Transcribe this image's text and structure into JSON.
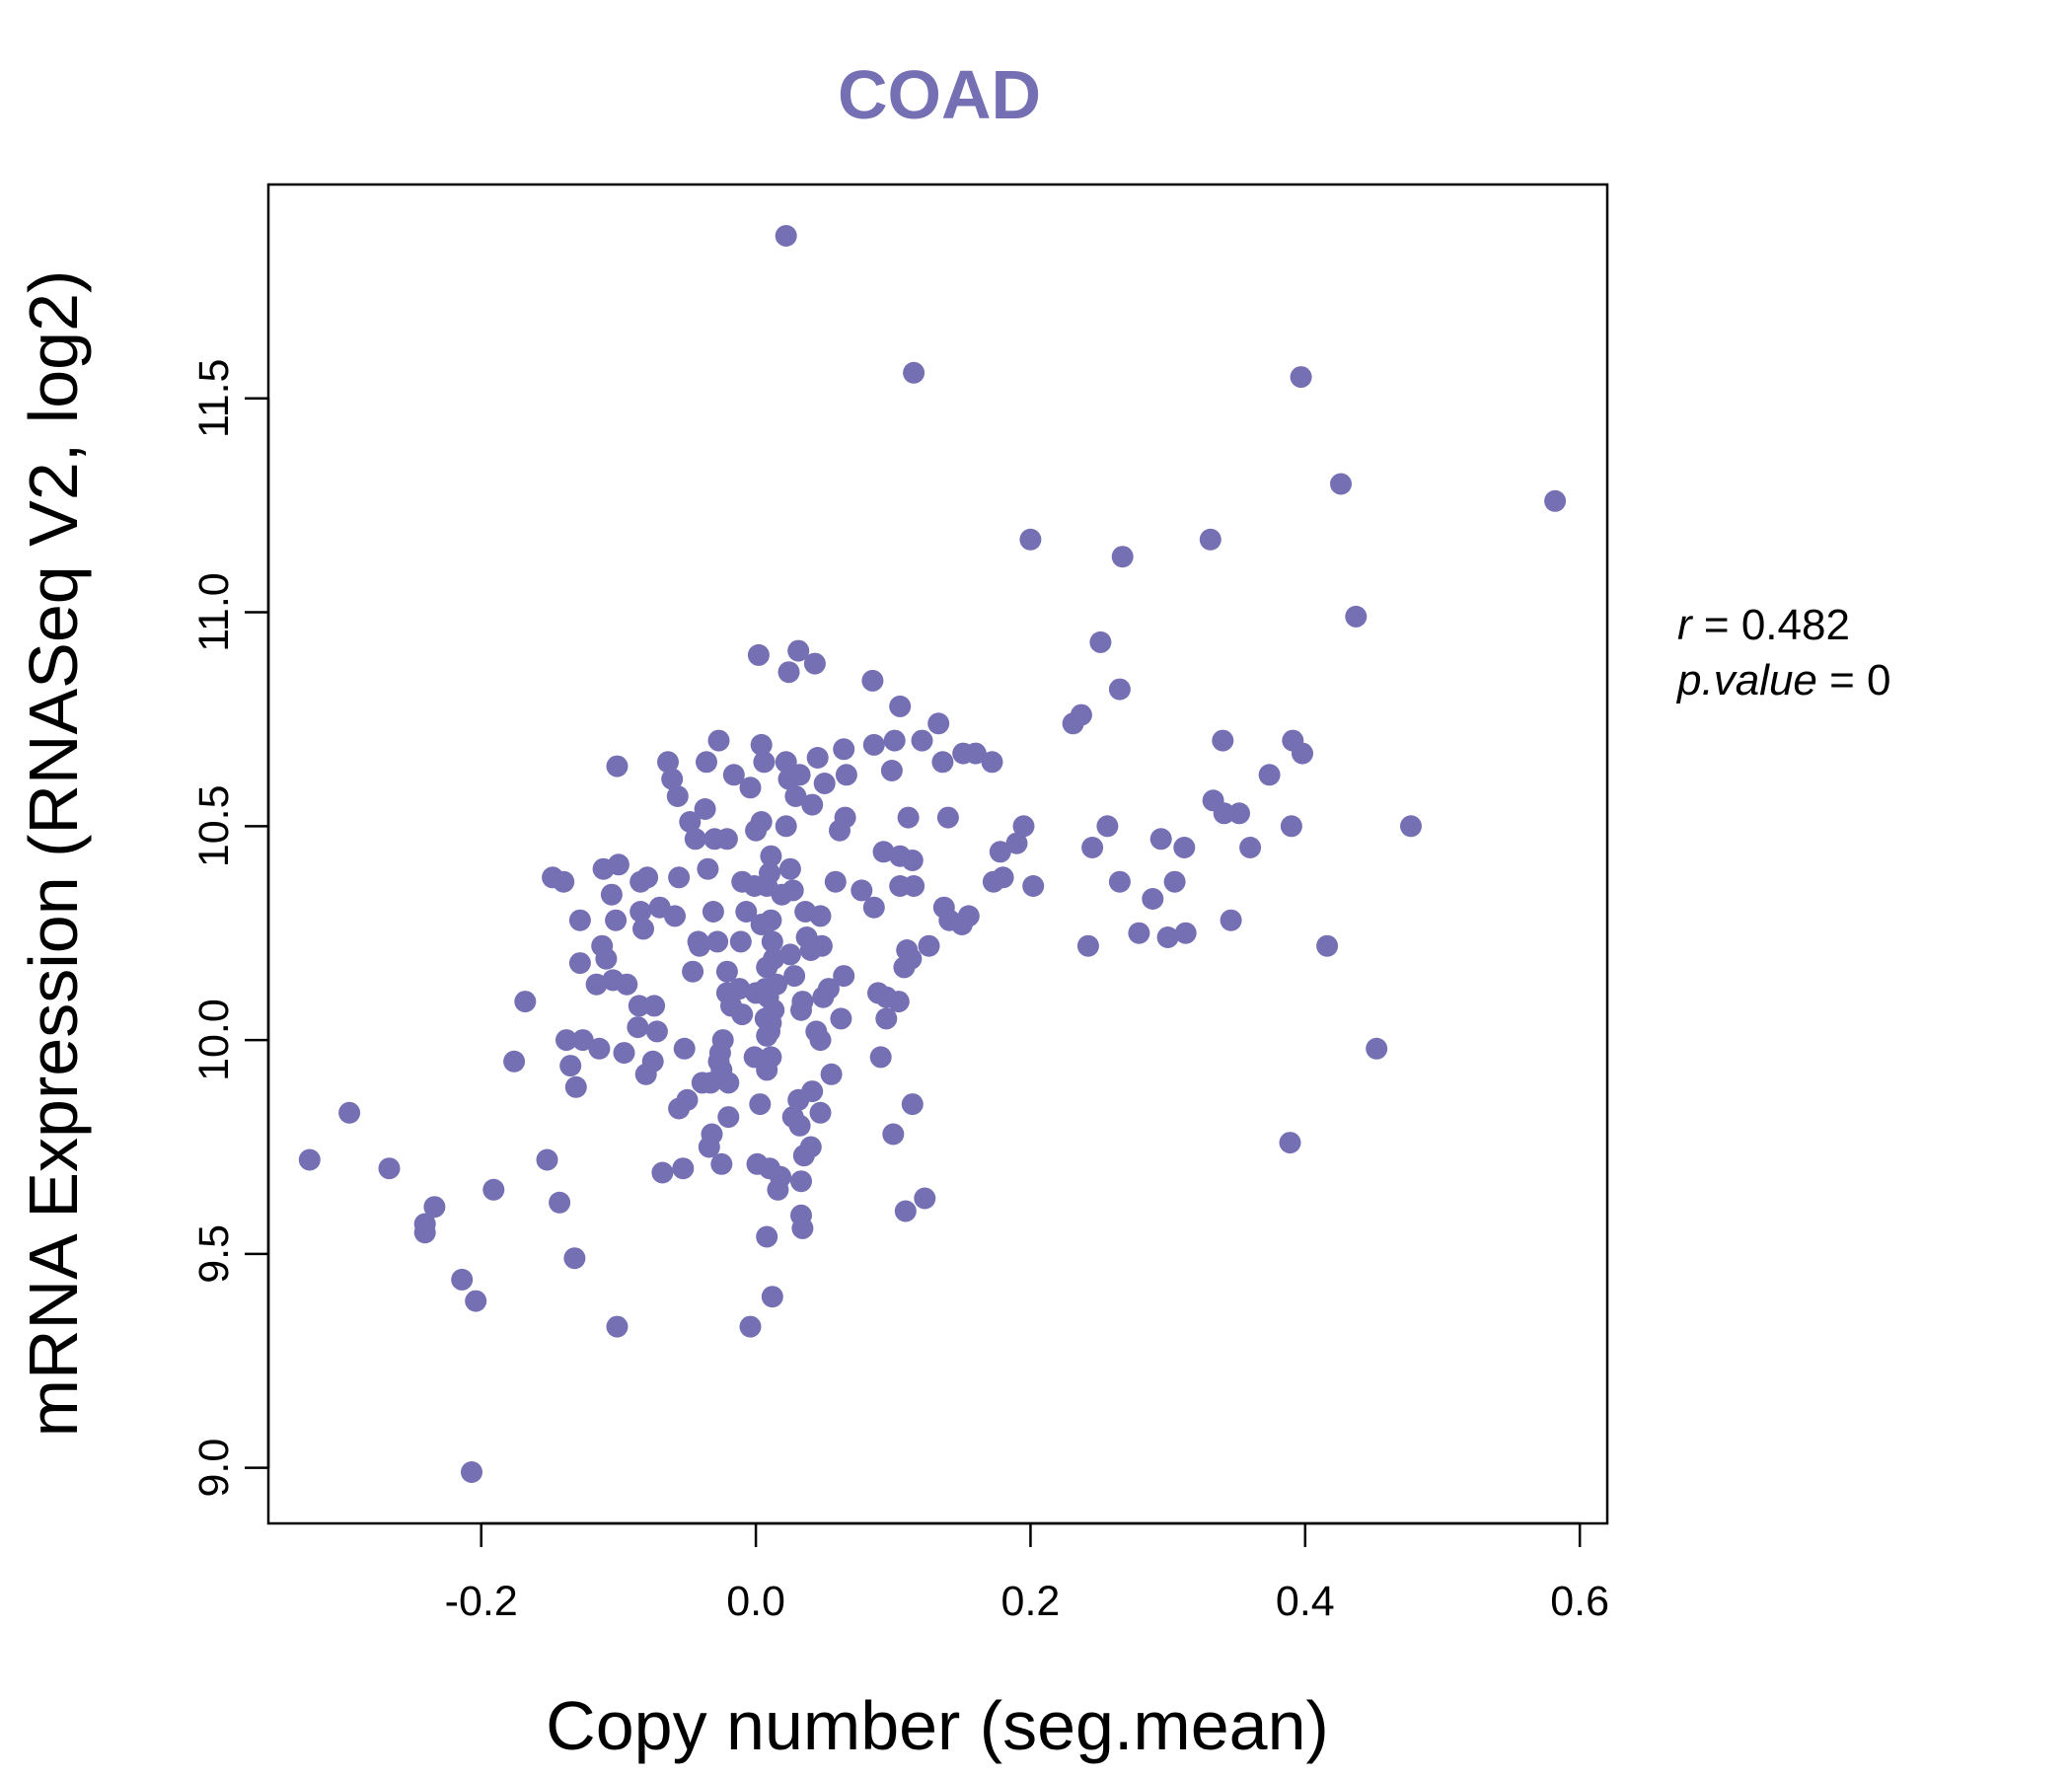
{
  "chart_data": {
    "type": "scatter",
    "title": "COAD",
    "title_color": "#7570b3",
    "point_color": "#7570b3",
    "xlabel": "Copy number (seg.mean)",
    "ylabel": "mRNA Expression (RNASeq V2, log2)",
    "xlim": [
      -0.355,
      0.62
    ],
    "ylim": [
      8.87,
      12.0
    ],
    "xticks": [
      -0.2,
      0.0,
      0.2,
      0.4,
      0.6
    ],
    "xtick_labels": [
      "-0.2",
      "0.0",
      "0.2",
      "0.4",
      "0.6"
    ],
    "yticks": [
      9.0,
      9.5,
      10.0,
      10.5,
      11.0,
      11.5
    ],
    "ytick_labels": [
      "9.0",
      "9.5",
      "10.0",
      "10.5",
      "11.0",
      "11.5"
    ],
    "grid": false,
    "annotations": {
      "r_label": "r",
      "r_value": "0.482",
      "p_label": "p.value",
      "p_value": "0"
    },
    "points": [
      [
        0.022,
        11.88
      ],
      [
        0.115,
        11.56
      ],
      [
        0.397,
        11.55
      ],
      [
        0.426,
        11.3
      ],
      [
        0.582,
        11.26
      ],
      [
        0.2,
        11.17
      ],
      [
        0.331,
        11.17
      ],
      [
        0.267,
        11.13
      ],
      [
        0.437,
        10.99
      ],
      [
        0.251,
        10.93
      ],
      [
        0.031,
        10.91
      ],
      [
        0.002,
        10.9
      ],
      [
        0.043,
        10.88
      ],
      [
        0.024,
        10.86
      ],
      [
        0.085,
        10.84
      ],
      [
        0.265,
        10.82
      ],
      [
        0.105,
        10.78
      ],
      [
        0.237,
        10.76
      ],
      [
        0.231,
        10.74
      ],
      [
        0.133,
        10.74
      ],
      [
        0.34,
        10.7
      ],
      [
        0.391,
        10.7
      ],
      [
        0.121,
        10.7
      ],
      [
        0.101,
        10.7
      ],
      [
        0.004,
        10.69
      ],
      [
        -0.027,
        10.7
      ],
      [
        0.086,
        10.69
      ],
      [
        0.064,
        10.68
      ],
      [
        0.398,
        10.67
      ],
      [
        0.151,
        10.67
      ],
      [
        0.16,
        10.67
      ],
      [
        0.172,
        10.65
      ],
      [
        0.136,
        10.65
      ],
      [
        0.045,
        10.66
      ],
      [
        0.022,
        10.65
      ],
      [
        0.006,
        10.65
      ],
      [
        -0.036,
        10.65
      ],
      [
        -0.064,
        10.65
      ],
      [
        -0.101,
        10.64
      ],
      [
        0.099,
        10.63
      ],
      [
        0.066,
        10.62
      ],
      [
        0.032,
        10.62
      ],
      [
        0.024,
        10.61
      ],
      [
        -0.016,
        10.62
      ],
      [
        -0.061,
        10.61
      ],
      [
        0.374,
        10.62
      ],
      [
        0.05,
        10.6
      ],
      [
        -0.004,
        10.59
      ],
      [
        0.029,
        10.57
      ],
      [
        -0.057,
        10.57
      ],
      [
        0.333,
        10.56
      ],
      [
        0.041,
        10.55
      ],
      [
        -0.037,
        10.54
      ],
      [
        0.341,
        10.53
      ],
      [
        0.352,
        10.53
      ],
      [
        0.065,
        10.52
      ],
      [
        0.14,
        10.52
      ],
      [
        0.111,
        10.52
      ],
      [
        0.004,
        10.51
      ],
      [
        -0.048,
        10.51
      ],
      [
        0.256,
        10.5
      ],
      [
        0.022,
        10.5
      ],
      [
        0.477,
        10.5
      ],
      [
        0.195,
        10.5
      ],
      [
        0.39,
        10.5
      ],
      [
        0.061,
        10.49
      ],
      [
        0.0,
        10.49
      ],
      [
        -0.044,
        10.47
      ],
      [
        -0.03,
        10.47
      ],
      [
        -0.021,
        10.47
      ],
      [
        0.295,
        10.47
      ],
      [
        0.19,
        10.46
      ],
      [
        0.36,
        10.45
      ],
      [
        0.312,
        10.45
      ],
      [
        0.245,
        10.45
      ],
      [
        0.093,
        10.44
      ],
      [
        0.178,
        10.44
      ],
      [
        0.011,
        10.43
      ],
      [
        0.105,
        10.43
      ],
      [
        0.114,
        10.42
      ],
      [
        -0.1,
        10.41
      ],
      [
        -0.111,
        10.4
      ],
      [
        0.025,
        10.4
      ],
      [
        -0.035,
        10.4
      ],
      [
        0.01,
        10.39
      ],
      [
        -0.148,
        10.38
      ],
      [
        -0.079,
        10.38
      ],
      [
        -0.056,
        10.38
      ],
      [
        0.18,
        10.38
      ],
      [
        0.173,
        10.37
      ],
      [
        0.265,
        10.37
      ],
      [
        0.305,
        10.37
      ],
      [
        -0.14,
        10.37
      ],
      [
        -0.084,
        10.37
      ],
      [
        -0.01,
        10.37
      ],
      [
        0.058,
        10.37
      ],
      [
        0.008,
        10.36
      ],
      [
        -0.001,
        10.36
      ],
      [
        0.105,
        10.36
      ],
      [
        0.115,
        10.36
      ],
      [
        0.202,
        10.36
      ],
      [
        0.027,
        10.35
      ],
      [
        0.077,
        10.35
      ],
      [
        -0.105,
        10.34
      ],
      [
        0.019,
        10.34
      ],
      [
        0.289,
        10.33
      ],
      [
        -0.07,
        10.31
      ],
      [
        0.086,
        10.31
      ],
      [
        -0.084,
        10.3
      ],
      [
        0.137,
        10.31
      ],
      [
        -0.031,
        10.3
      ],
      [
        -0.007,
        10.3
      ],
      [
        0.036,
        10.3
      ],
      [
        0.047,
        10.29
      ],
      [
        0.155,
        10.29
      ],
      [
        -0.059,
        10.29
      ],
      [
        0.011,
        10.28
      ],
      [
        0.141,
        10.28
      ],
      [
        -0.128,
        10.28
      ],
      [
        -0.102,
        10.28
      ],
      [
        0.346,
        10.28
      ],
      [
        0.15,
        10.27
      ],
      [
        0.004,
        10.27
      ],
      [
        -0.082,
        10.26
      ],
      [
        0.279,
        10.25
      ],
      [
        0.313,
        10.25
      ],
      [
        0.3,
        10.24
      ],
      [
        0.037,
        10.24
      ],
      [
        -0.042,
        10.23
      ],
      [
        -0.028,
        10.23
      ],
      [
        -0.011,
        10.23
      ],
      [
        -0.041,
        10.22
      ],
      [
        0.012,
        10.23
      ],
      [
        0.416,
        10.22
      ],
      [
        0.242,
        10.22
      ],
      [
        0.048,
        10.22
      ],
      [
        0.126,
        10.22
      ],
      [
        -0.112,
        10.22
      ],
      [
        0.11,
        10.21
      ],
      [
        0.04,
        10.21
      ],
      [
        0.025,
        10.2
      ],
      [
        -0.109,
        10.19
      ],
      [
        0.113,
        10.19
      ],
      [
        0.013,
        10.19
      ],
      [
        0.108,
        10.17
      ],
      [
        0.008,
        10.17
      ],
      [
        -0.046,
        10.16
      ],
      [
        -0.128,
        10.18
      ],
      [
        -0.021,
        10.16
      ],
      [
        0.064,
        10.15
      ],
      [
        0.028,
        10.15
      ],
      [
        -0.104,
        10.14
      ],
      [
        -0.094,
        10.13
      ],
      [
        0.015,
        10.13
      ],
      [
        -0.116,
        10.13
      ],
      [
        -0.012,
        10.12
      ],
      [
        0.053,
        10.12
      ],
      [
        0.007,
        10.12
      ],
      [
        0.0,
        10.11
      ],
      [
        -0.021,
        10.11
      ],
      [
        0.089,
        10.11
      ],
      [
        0.095,
        10.1
      ],
      [
        0.009,
        10.1
      ],
      [
        0.049,
        10.1
      ],
      [
        0.034,
        10.09
      ],
      [
        0.104,
        10.09
      ],
      [
        -0.168,
        10.09
      ],
      [
        -0.085,
        10.08
      ],
      [
        -0.074,
        10.08
      ],
      [
        -0.018,
        10.08
      ],
      [
        0.013,
        10.07
      ],
      [
        0.033,
        10.07
      ],
      [
        -0.01,
        10.06
      ],
      [
        0.007,
        10.05
      ],
      [
        0.062,
        10.05
      ],
      [
        0.095,
        10.05
      ],
      [
        0.011,
        10.04
      ],
      [
        -0.086,
        10.03
      ],
      [
        0.01,
        10.02
      ],
      [
        0.044,
        10.02
      ],
      [
        -0.072,
        10.02
      ],
      [
        0.008,
        10.01
      ],
      [
        -0.024,
        10.0
      ],
      [
        -0.138,
        10.0
      ],
      [
        -0.126,
        10.0
      ],
      [
        -0.114,
        9.98
      ],
      [
        0.047,
        10.0
      ],
      [
        -0.052,
        9.98
      ],
      [
        -0.096,
        9.97
      ],
      [
        -0.026,
        9.97
      ],
      [
        0.452,
        9.98
      ],
      [
        0.091,
        9.96
      ],
      [
        0.011,
        9.96
      ],
      [
        -0.001,
        9.96
      ],
      [
        -0.027,
        9.95
      ],
      [
        -0.075,
        9.95
      ],
      [
        -0.176,
        9.95
      ],
      [
        -0.135,
        9.94
      ],
      [
        0.008,
        9.93
      ],
      [
        -0.025,
        9.93
      ],
      [
        -0.08,
        9.92
      ],
      [
        0.055,
        9.92
      ],
      [
        -0.039,
        9.9
      ],
      [
        -0.02,
        9.9
      ],
      [
        -0.033,
        9.9
      ],
      [
        -0.131,
        9.89
      ],
      [
        0.041,
        9.88
      ],
      [
        0.031,
        9.86
      ],
      [
        -0.05,
        9.86
      ],
      [
        0.003,
        9.85
      ],
      [
        0.114,
        9.85
      ],
      [
        -0.056,
        9.84
      ],
      [
        0.047,
        9.83
      ],
      [
        -0.296,
        9.83
      ],
      [
        -0.02,
        9.82
      ],
      [
        0.027,
        9.82
      ],
      [
        0.032,
        9.8
      ],
      [
        0.1,
        9.78
      ],
      [
        -0.032,
        9.78
      ],
      [
        -0.034,
        9.75
      ],
      [
        0.389,
        9.76
      ],
      [
        0.04,
        9.75
      ],
      [
        0.035,
        9.73
      ],
      [
        -0.025,
        9.71
      ],
      [
        -0.152,
        9.72
      ],
      [
        0.001,
        9.71
      ],
      [
        -0.325,
        9.72
      ],
      [
        0.01,
        9.7
      ],
      [
        -0.267,
        9.7
      ],
      [
        -0.053,
        9.7
      ],
      [
        -0.068,
        9.69
      ],
      [
        0.018,
        9.68
      ],
      [
        0.033,
        9.67
      ],
      [
        0.016,
        9.65
      ],
      [
        -0.191,
        9.65
      ],
      [
        0.123,
        9.63
      ],
      [
        -0.143,
        9.62
      ],
      [
        0.109,
        9.6
      ],
      [
        -0.234,
        9.61
      ],
      [
        0.033,
        9.59
      ],
      [
        -0.241,
        9.57
      ],
      [
        0.034,
        9.56
      ],
      [
        -0.241,
        9.55
      ],
      [
        0.008,
        9.54
      ],
      [
        -0.132,
        9.49
      ],
      [
        -0.214,
        9.44
      ],
      [
        -0.204,
        9.39
      ],
      [
        0.012,
        9.4
      ],
      [
        -0.101,
        9.33
      ],
      [
        -0.004,
        9.33
      ],
      [
        -0.207,
        8.99
      ]
    ]
  }
}
